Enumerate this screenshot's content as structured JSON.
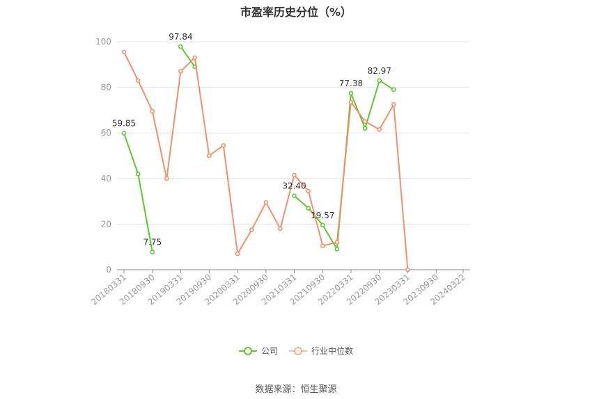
{
  "title": "市盈率历史分位（%）",
  "source_text": "数据来源：恒生聚源",
  "colors": {
    "company": "#5cc72f",
    "industry": "#f0916a",
    "grid": "#e3e3e3",
    "axis": "#888888"
  },
  "chart_data": {
    "type": "line",
    "title": "市盈率历史分位（%）",
    "ylim": [
      0,
      100
    ],
    "yticks": [
      0,
      20,
      40,
      60,
      80,
      100
    ],
    "grid": true,
    "legend": "bottom-center",
    "x_labels": [
      "20180331",
      "20180930",
      "20190331",
      "20190930",
      "20200331",
      "20200930",
      "20210331",
      "20210930",
      "20220331",
      "20220930",
      "20230331",
      "20230930",
      "20240322"
    ],
    "series": [
      {
        "name": "公司",
        "color": "#5cc72f",
        "points": [
          {
            "x": "20180331",
            "y": 59.85
          },
          {
            "x": "20180630",
            "y": 42.0
          },
          {
            "x": "20180930",
            "y": 7.75
          },
          {
            "x": "20181231",
            "y": null
          },
          {
            "x": "20190331",
            "y": 97.84
          },
          {
            "x": "20190630",
            "y": 89.0
          },
          {
            "x": "20190930",
            "y": null
          },
          {
            "x": "20191231",
            "y": null
          },
          {
            "x": "20200331",
            "y": null
          },
          {
            "x": "20200630",
            "y": null
          },
          {
            "x": "20200930",
            "y": null
          },
          {
            "x": "20201231",
            "y": null
          },
          {
            "x": "20210331",
            "y": 32.4
          },
          {
            "x": "20210630",
            "y": 27.0
          },
          {
            "x": "20210930",
            "y": 19.57
          },
          {
            "x": "20211231",
            "y": 9.0
          },
          {
            "x": "20220331",
            "y": 77.38
          },
          {
            "x": "20220630",
            "y": 62.0
          },
          {
            "x": "20220930",
            "y": 82.97
          },
          {
            "x": "20221231",
            "y": 79.0
          }
        ],
        "labels": [
          {
            "x": "20180331",
            "text": "59.85"
          },
          {
            "x": "20180930",
            "text": "7.75"
          },
          {
            "x": "20190331",
            "text": "97.84"
          },
          {
            "x": "20210331",
            "text": "32.40"
          },
          {
            "x": "20210930",
            "text": "19.57"
          },
          {
            "x": "20220331",
            "text": "77.38"
          },
          {
            "x": "20220930",
            "text": "82.97"
          }
        ]
      },
      {
        "name": "行业中位数",
        "color": "#f0916a",
        "points": [
          {
            "x": "20180331",
            "y": 95.5
          },
          {
            "x": "20180630",
            "y": 83.0
          },
          {
            "x": "20180930",
            "y": 69.5
          },
          {
            "x": "20181231",
            "y": 40.0
          },
          {
            "x": "20190331",
            "y": 87.0
          },
          {
            "x": "20190630",
            "y": 93.0
          },
          {
            "x": "20190930",
            "y": 50.0
          },
          {
            "x": "20191231",
            "y": 54.5
          },
          {
            "x": "20200331",
            "y": 7.0
          },
          {
            "x": "20200630",
            "y": 17.5
          },
          {
            "x": "20200930",
            "y": 29.5
          },
          {
            "x": "20201231",
            "y": 18.0
          },
          {
            "x": "20210331",
            "y": 41.5
          },
          {
            "x": "20210630",
            "y": 34.5
          },
          {
            "x": "20210930",
            "y": 10.5
          },
          {
            "x": "20211231",
            "y": 12.0
          },
          {
            "x": "20220331",
            "y": 73.5
          },
          {
            "x": "20220630",
            "y": 65.0
          },
          {
            "x": "20220930",
            "y": 61.5
          },
          {
            "x": "20221231",
            "y": 72.5
          },
          {
            "x": "20230331",
            "y": 0.0
          }
        ]
      }
    ]
  }
}
